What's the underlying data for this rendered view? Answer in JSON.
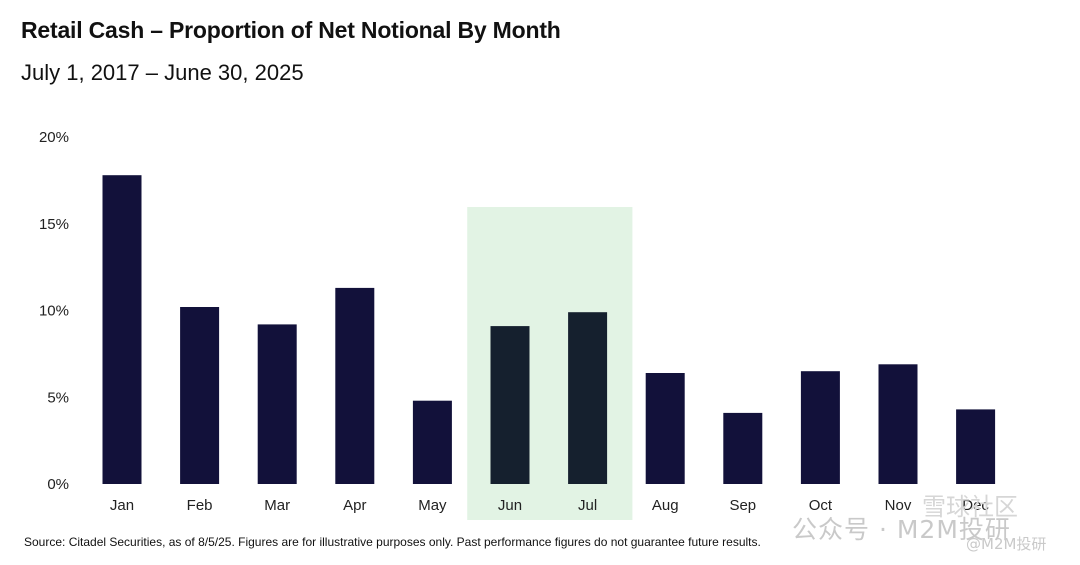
{
  "header": {
    "title": "Retail Cash – Proportion of Net Notional By Month",
    "subtitle": "July 1, 2017 – June 30, 2025"
  },
  "footer": {
    "source": "Source: Citadel Securities, as of 8/5/25. Figures are for illustrative purposes only. Past performance figures do not guarantee future results."
  },
  "watermark": {
    "main": "公众号 · M2M投研",
    "sub": "@M2M投研",
    "top": "雪球社区"
  },
  "colors": {
    "bar": "#12113a",
    "bar_highlight": "#15202e",
    "highlight_band": "#e2f3e4",
    "axis_text": "#222222"
  },
  "chart_data": {
    "type": "bar",
    "title": "Retail Cash – Proportion of Net Notional By Month",
    "subtitle": "July 1, 2017 – June 30, 2025",
    "xlabel": "",
    "ylabel": "",
    "categories": [
      "Jan",
      "Feb",
      "Mar",
      "Apr",
      "May",
      "Jun",
      "Jul",
      "Aug",
      "Sep",
      "Oct",
      "Nov",
      "Dec"
    ],
    "values": [
      17.8,
      10.2,
      9.2,
      11.3,
      4.8,
      9.1,
      9.9,
      6.4,
      4.1,
      6.5,
      6.9,
      4.3
    ],
    "ylim": [
      0,
      20
    ],
    "yticks": [
      0,
      5,
      10,
      15,
      20
    ],
    "ytick_labels": [
      "0%",
      "5%",
      "10%",
      "15%",
      "20%"
    ],
    "highlight_categories": [
      "Jun",
      "Jul"
    ],
    "grid": false,
    "legend": "none"
  }
}
